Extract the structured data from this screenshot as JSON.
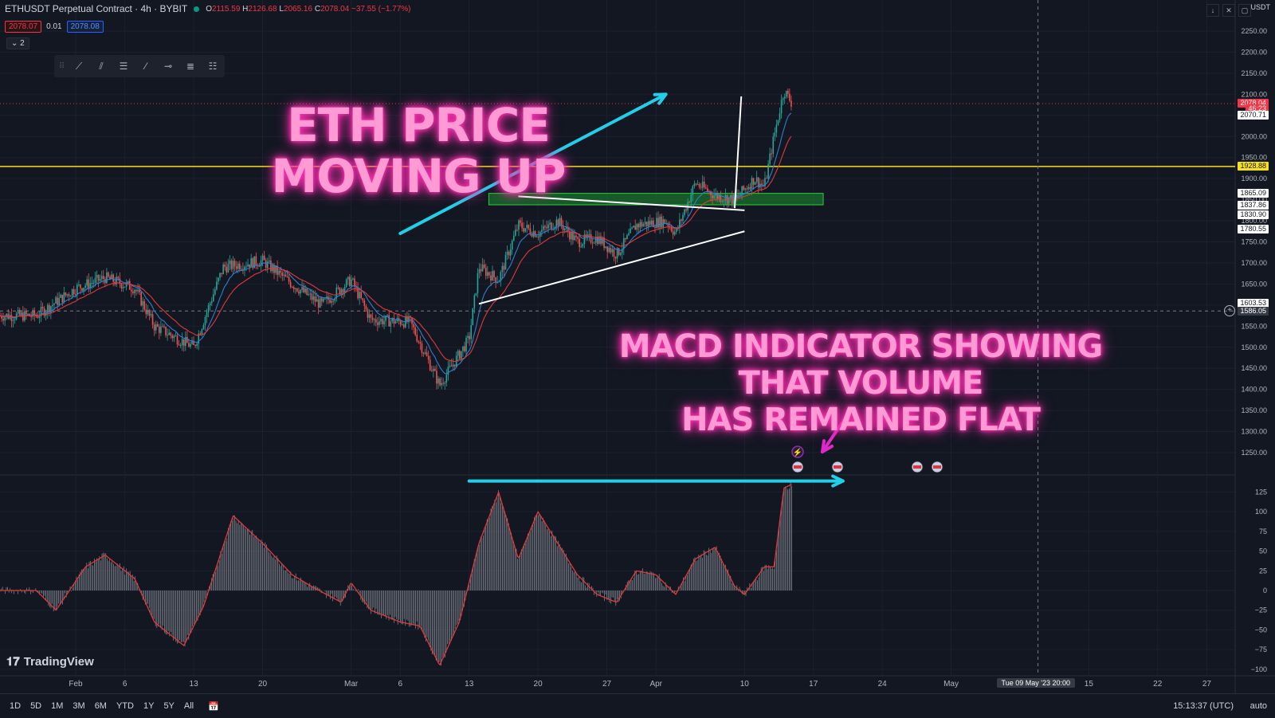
{
  "header": {
    "symbol_title": "ETHUSDT Perpetual Contract · 4h · BYBIT",
    "ohlc": {
      "o_label": "O",
      "o": "2115.59",
      "h_label": "H",
      "h": "2126.68",
      "l_label": "L",
      "l": "2065.16",
      "c_label": "C",
      "c": "2078.04",
      "change": "−37.55 (−1.77%)"
    },
    "sell_price": "2078.07",
    "spread": "0.01",
    "buy_price": "2078.08",
    "indicator_count": "2"
  },
  "currency": "USDT",
  "annotations": {
    "headline": "ETH PRICE MOVING UP",
    "macd_note_line1": "MACD INDICATOR SHOWING THAT VOLUME",
    "macd_note_line2": "HAS REMAINED FLAT"
  },
  "price_labels": {
    "last": "2078.04",
    "countdown": "46:23",
    "ema": "2070.71",
    "resistance": "1928.88",
    "l1865": "1865.09",
    "l1837": "1837.86",
    "l1830": "1830.90",
    "l1780": "1780.55",
    "l1603": "1603.53",
    "crosshair": "1586.05"
  },
  "crosshair_date": "Tue 09 May '23",
  "crosshair_time": "20:00",
  "bottom": {
    "timeframes": [
      "1D",
      "5D",
      "1M",
      "3M",
      "6M",
      "YTD",
      "1Y",
      "5Y",
      "All"
    ],
    "clock": "15:13:37 (UTC)",
    "auto": "auto"
  },
  "brand": "TradingView",
  "colors": {
    "bg": "#131722",
    "up": "#26a69a",
    "down": "#ef5350",
    "ema_red": "#e03a3a",
    "ema_blue": "#2f7fd0",
    "yellow": "#f7e01c",
    "green_zone": "#1b8f2d",
    "cyan_arrow": "#22cfe8",
    "neon_pink": "#ff4fc3",
    "magenta_arrow": "#e028c8"
  },
  "chart_data": [
    {
      "type": "candlestick",
      "title": "ETHUSDT Perpetual Contract · 4h · BYBIT",
      "x_tick_labels": [
        "Feb",
        "6",
        "13",
        "20",
        "Mar",
        "6",
        "13",
        "20",
        "27",
        "Apr",
        "10",
        "17",
        "24",
        "May",
        "15",
        "22",
        "27"
      ],
      "y_ticks": [
        1250,
        1300,
        1350,
        1400,
        1450,
        1500,
        1550,
        1600,
        1650,
        1700,
        1750,
        1800,
        1850,
        1900,
        1950,
        2000,
        2050,
        2100,
        2150,
        2200,
        2250
      ],
      "ylim": [
        1220,
        2275
      ],
      "close_path": [
        {
          "d": "2023-01-28",
          "c": 1575
        },
        {
          "d": "2023-02-01",
          "c": 1640
        },
        {
          "d": "2023-02-04",
          "c": 1665
        },
        {
          "d": "2023-02-07",
          "c": 1640
        },
        {
          "d": "2023-02-09",
          "c": 1550
        },
        {
          "d": "2023-02-13",
          "c": 1500
        },
        {
          "d": "2023-02-16",
          "c": 1690
        },
        {
          "d": "2023-02-20",
          "c": 1705
        },
        {
          "d": "2023-02-23",
          "c": 1650
        },
        {
          "d": "2023-02-26",
          "c": 1600
        },
        {
          "d": "2023-03-01",
          "c": 1660
        },
        {
          "d": "2023-03-03",
          "c": 1565
        },
        {
          "d": "2023-03-07",
          "c": 1560
        },
        {
          "d": "2023-03-10",
          "c": 1410
        },
        {
          "d": "2023-03-13",
          "c": 1520
        },
        {
          "d": "2023-03-14",
          "c": 1690
        },
        {
          "d": "2023-03-16",
          "c": 1660
        },
        {
          "d": "2023-03-18",
          "c": 1790
        },
        {
          "d": "2023-03-20",
          "c": 1770
        },
        {
          "d": "2023-03-22",
          "c": 1800
        },
        {
          "d": "2023-03-24",
          "c": 1750
        },
        {
          "d": "2023-03-26",
          "c": 1760
        },
        {
          "d": "2023-03-28",
          "c": 1720
        },
        {
          "d": "2023-03-30",
          "c": 1790
        },
        {
          "d": "2023-04-02",
          "c": 1800
        },
        {
          "d": "2023-04-03",
          "c": 1770
        },
        {
          "d": "2023-04-05",
          "c": 1890
        },
        {
          "d": "2023-04-07",
          "c": 1860
        },
        {
          "d": "2023-04-09",
          "c": 1850
        },
        {
          "d": "2023-04-11",
          "c": 1900
        },
        {
          "d": "2023-04-12",
          "c": 1880
        },
        {
          "d": "2023-04-13",
          "c": 2000
        },
        {
          "d": "2023-04-14",
          "c": 2110
        },
        {
          "d": "2023-04-14T20:00",
          "c": 2078
        }
      ],
      "ema_offset": -25,
      "horizontal_lines": [
        {
          "name": "resistance",
          "value": 1928.88,
          "color": "yellow"
        },
        {
          "name": "crosshair",
          "value": 1586.05,
          "style": "dashed"
        },
        {
          "name": "last-price",
          "value": 2078.04,
          "style": "dotted"
        }
      ],
      "zones": [
        {
          "name": "support-zone",
          "y_from": 1837.86,
          "y_to": 1865.09,
          "x_from": "2023-03-15",
          "x_to": "2023-04-18"
        }
      ],
      "trendlines": [
        {
          "name": "upper-trendline",
          "from": [
            "2023-03-18",
            1858
          ],
          "to": [
            "2023-04-10",
            1825
          ]
        },
        {
          "name": "lower-trendline",
          "from": [
            "2023-03-14",
            1603
          ],
          "to": [
            "2023-04-10",
            1775
          ]
        },
        {
          "name": "breakout-marker",
          "from": [
            "2023-04-09",
            1830
          ],
          "to": [
            "2023-04-09T16:00",
            2095
          ]
        }
      ],
      "arrows": [
        {
          "name": "eth-price-up-arrow",
          "from": [
            "2023-03-06",
            1770
          ],
          "to": [
            "2023-04-02",
            2100
          ]
        }
      ]
    },
    {
      "type": "histogram",
      "title": "MACD",
      "y_ticks": [
        125,
        100,
        75,
        50,
        25,
        0,
        -25,
        -50,
        -75,
        -100
      ],
      "ylim": [
        -100,
        135
      ],
      "histogram_path": [
        {
          "d": "2023-01-28",
          "v": 0
        },
        {
          "d": "2023-01-30",
          "v": -25
        },
        {
          "d": "2023-02-02",
          "v": 30
        },
        {
          "d": "2023-02-04",
          "v": 45
        },
        {
          "d": "2023-02-07",
          "v": 15
        },
        {
          "d": "2023-02-09",
          "v": -40
        },
        {
          "d": "2023-02-12",
          "v": -70
        },
        {
          "d": "2023-02-14",
          "v": -20
        },
        {
          "d": "2023-02-17",
          "v": 95
        },
        {
          "d": "2023-02-20",
          "v": 60
        },
        {
          "d": "2023-02-23",
          "v": 20
        },
        {
          "d": "2023-02-25",
          "v": 5
        },
        {
          "d": "2023-02-28",
          "v": -15
        },
        {
          "d": "2023-03-01",
          "v": 10
        },
        {
          "d": "2023-03-03",
          "v": -25
        },
        {
          "d": "2023-03-06",
          "v": -40
        },
        {
          "d": "2023-03-08",
          "v": -45
        },
        {
          "d": "2023-03-10",
          "v": -95
        },
        {
          "d": "2023-03-12",
          "v": -40
        },
        {
          "d": "2023-03-14",
          "v": 60
        },
        {
          "d": "2023-03-16",
          "v": 125
        },
        {
          "d": "2023-03-18",
          "v": 40
        },
        {
          "d": "2023-03-20",
          "v": 100
        },
        {
          "d": "2023-03-22",
          "v": 60
        },
        {
          "d": "2023-03-24",
          "v": 20
        },
        {
          "d": "2023-03-26",
          "v": -5
        },
        {
          "d": "2023-03-28",
          "v": -15
        },
        {
          "d": "2023-03-30",
          "v": 25
        },
        {
          "d": "2023-04-01",
          "v": 20
        },
        {
          "d": "2023-04-03",
          "v": -5
        },
        {
          "d": "2023-04-05",
          "v": 40
        },
        {
          "d": "2023-04-07",
          "v": 55
        },
        {
          "d": "2023-04-09",
          "v": 5
        },
        {
          "d": "2023-04-10",
          "v": -5
        },
        {
          "d": "2023-04-12",
          "v": 30
        },
        {
          "d": "2023-04-13",
          "v": 30
        },
        {
          "d": "2023-04-14",
          "v": 130
        },
        {
          "d": "2023-04-14T20:00",
          "v": 135
        }
      ],
      "arrows": [
        {
          "name": "macd-flat-arrow",
          "from": [
            "2023-03-13",
            139
          ],
          "to": [
            "2023-04-20",
            139
          ]
        }
      ]
    }
  ]
}
